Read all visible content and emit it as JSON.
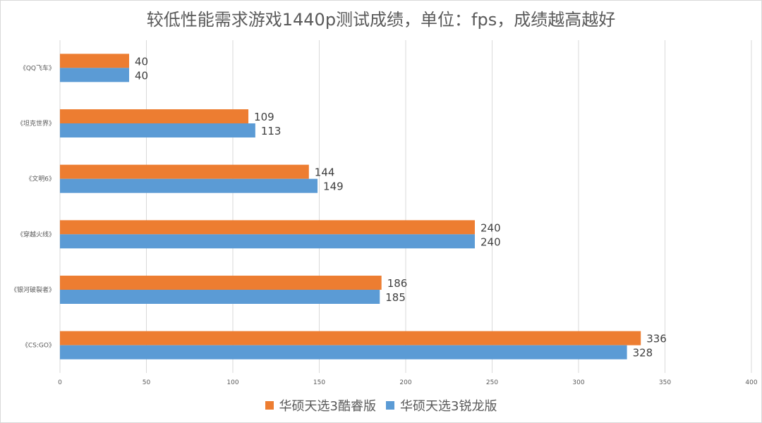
{
  "chart_data": {
    "type": "bar",
    "orientation": "horizontal",
    "title": "较低性能需求游戏1440p测试成绩，单位：fps，成绩越高越好",
    "categories": [
      "《QQ飞车》",
      "《坦克世界》",
      "《文明6》",
      "《穿越火线》",
      "《银河破裂者》",
      "《CS:GO》"
    ],
    "series": [
      {
        "name": "华硕天选3酷睿版",
        "color": "#ED7D31",
        "values": [
          40,
          109,
          144,
          240,
          186,
          336
        ]
      },
      {
        "name": "华硕天选3锐龙版",
        "color": "#5B9BD5",
        "values": [
          40,
          113,
          149,
          240,
          185,
          328
        ]
      }
    ],
    "xlim": [
      0,
      400
    ],
    "xticks": [
      0,
      50,
      100,
      150,
      200,
      250,
      300,
      350,
      400
    ],
    "grid": true,
    "data_labels": true,
    "legend_position": "bottom"
  }
}
